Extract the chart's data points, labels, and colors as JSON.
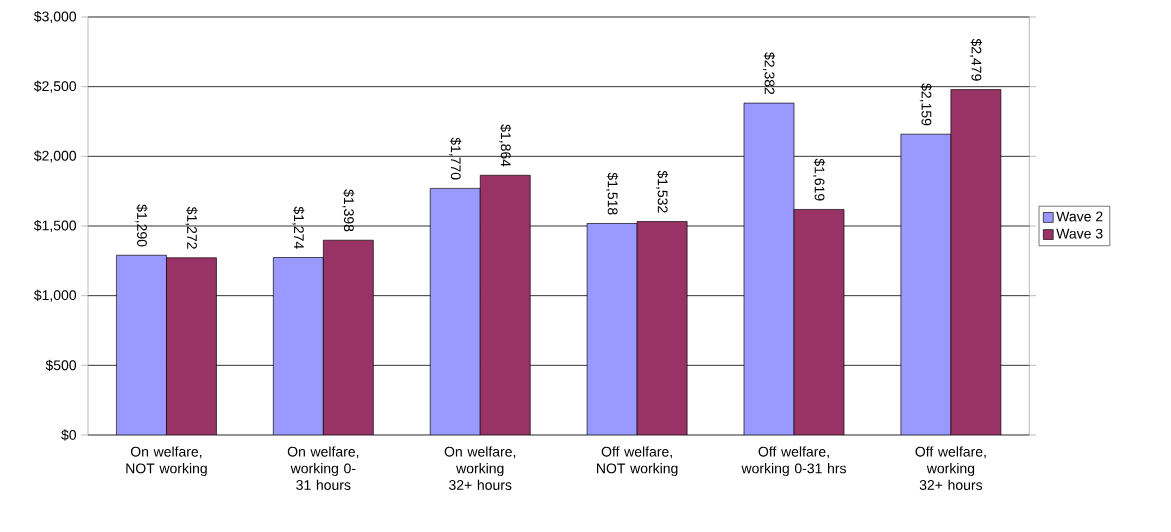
{
  "chart_data": {
    "type": "bar",
    "categories": [
      "On welfare, NOT working",
      "On welfare, working 0-31 hours",
      "On welfare, working 32+ hours",
      "Off welfare, NOT working",
      "Off welfare, working 0-31 hrs",
      "Off welfare, working 32+ hours"
    ],
    "series": [
      {
        "name": "Wave 2",
        "color": "#9999ff",
        "values": [
          1290,
          1274,
          1770,
          1518,
          2382,
          2159
        ],
        "value_labels": [
          "$1,290",
          "$1,274",
          "$1,770",
          "$1,518",
          "$2,382",
          "$2,159"
        ]
      },
      {
        "name": "Wave 3",
        "color": "#993366",
        "values": [
          1272,
          1398,
          1864,
          1532,
          1619,
          2479
        ],
        "value_labels": [
          "$1,272",
          "$1,398",
          "$1,864",
          "$1,532",
          "$1,619",
          "$2,479"
        ]
      }
    ],
    "ylim": [
      0,
      3000
    ],
    "yticks": [
      {
        "value": 0,
        "label": "$0"
      },
      {
        "value": 500,
        "label": "$500"
      },
      {
        "value": 1000,
        "label": "$1,000"
      },
      {
        "value": 1500,
        "label": "$1,500"
      },
      {
        "value": 2000,
        "label": "$2,000"
      },
      {
        "value": 2500,
        "label": "$2,500"
      },
      {
        "value": 3000,
        "label": "$3,000"
      }
    ],
    "grid": "y",
    "legend": "right"
  }
}
